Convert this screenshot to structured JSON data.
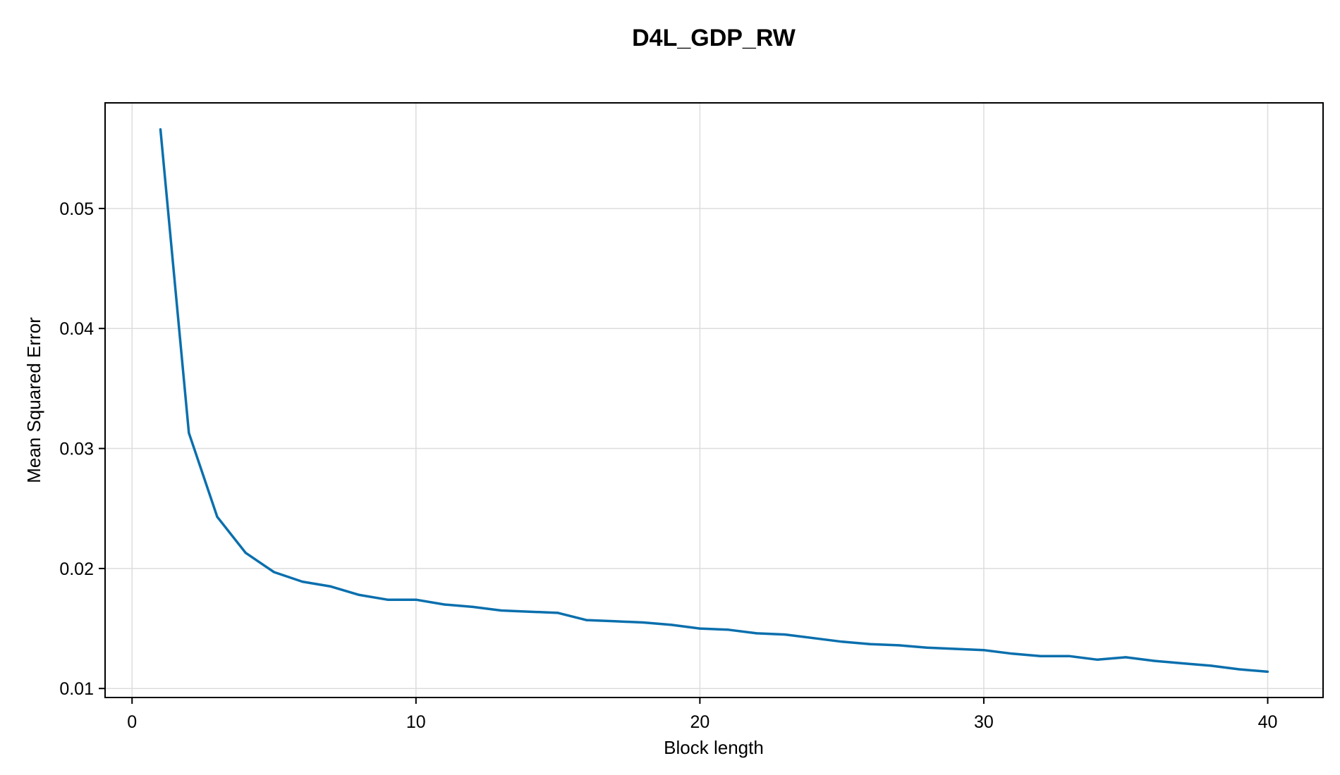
{
  "chart_data": {
    "type": "line",
    "title": "D4L_GDP_RW",
    "xlabel": "Block length",
    "ylabel": "Mean Squared Error",
    "xlim": [
      -0.95,
      41.95
    ],
    "ylim": [
      0.00925,
      0.0588
    ],
    "xticks": [
      0,
      10,
      20,
      30,
      40
    ],
    "yticks": [
      0.01,
      0.02,
      0.03,
      0.04,
      0.05
    ],
    "xtick_labels": [
      "0",
      "10",
      "20",
      "30",
      "40"
    ],
    "ytick_labels": [
      "0.01",
      "0.02",
      "0.03",
      "0.04",
      "0.05"
    ],
    "grid": true,
    "series": [
      {
        "color": "#0a6fad",
        "x": [
          1,
          2,
          3,
          4,
          5,
          6,
          7,
          8,
          9,
          10,
          11,
          12,
          13,
          14,
          15,
          16,
          17,
          18,
          19,
          20,
          21,
          22,
          23,
          24,
          25,
          26,
          27,
          28,
          29,
          30,
          31,
          32,
          33,
          34,
          35,
          36,
          37,
          38,
          39,
          40
        ],
        "y": [
          0.0566,
          0.0313,
          0.0243,
          0.0213,
          0.0197,
          0.0189,
          0.0185,
          0.0178,
          0.0174,
          0.0174,
          0.017,
          0.0168,
          0.0165,
          0.0164,
          0.0163,
          0.0157,
          0.0156,
          0.0155,
          0.0153,
          0.015,
          0.0149,
          0.0146,
          0.0145,
          0.0142,
          0.0139,
          0.0137,
          0.0136,
          0.0134,
          0.0133,
          0.0132,
          0.0129,
          0.0127,
          0.0127,
          0.0124,
          0.0126,
          0.0123,
          0.0121,
          0.0119,
          0.0116,
          0.0114
        ]
      }
    ]
  }
}
